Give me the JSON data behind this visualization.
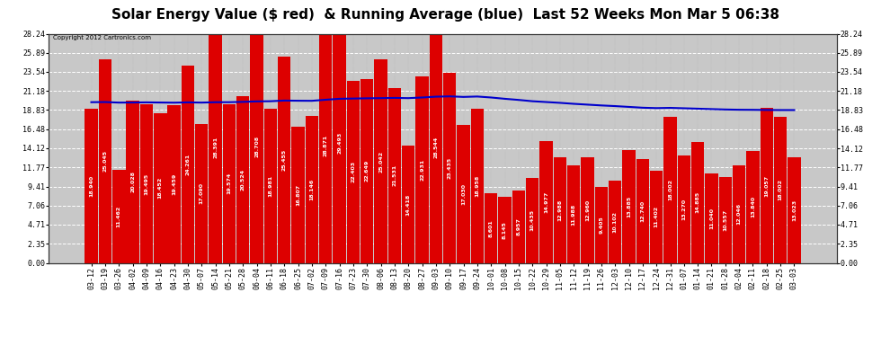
{
  "title": "Solar Energy Value ($ red)  & Running Average (blue)  Last 52 Weeks Mon Mar 5 06:38",
  "copyright": "Copyright 2012 Cartronics.com",
  "bar_color": "#dd0000",
  "line_color": "#0000cc",
  "background_color": "#ffffff",
  "plot_bg_color": "#c8c8c8",
  "grid_color": "#ffffff",
  "ylim": [
    0.0,
    28.24
  ],
  "yticks": [
    0.0,
    2.35,
    4.71,
    7.06,
    9.41,
    11.77,
    14.12,
    16.48,
    18.83,
    21.18,
    23.54,
    25.89,
    28.24
  ],
  "categories": [
    "03-12",
    "03-19",
    "03-26",
    "04-02",
    "04-09",
    "04-16",
    "04-23",
    "04-30",
    "05-07",
    "05-14",
    "05-21",
    "05-28",
    "06-04",
    "06-11",
    "06-18",
    "06-25",
    "07-02",
    "07-09",
    "07-16",
    "07-23",
    "07-30",
    "08-06",
    "08-13",
    "08-20",
    "08-27",
    "09-03",
    "09-10",
    "09-17",
    "09-24",
    "10-01",
    "10-08",
    "10-15",
    "10-22",
    "10-29",
    "11-05",
    "11-12",
    "11-19",
    "11-26",
    "12-03",
    "12-10",
    "12-17",
    "12-24",
    "12-31",
    "01-07",
    "01-14",
    "01-21",
    "01-28",
    "02-04",
    "02-11",
    "02-18",
    "02-25",
    "03-03"
  ],
  "values": [
    18.94,
    25.045,
    11.462,
    20.028,
    19.495,
    18.452,
    19.459,
    24.261,
    17.09,
    28.391,
    19.574,
    20.524,
    28.708,
    18.981,
    25.455,
    16.807,
    18.146,
    28.871,
    29.493,
    22.403,
    22.649,
    25.042,
    21.531,
    14.418,
    22.931,
    28.544,
    23.435,
    17.03,
    18.958,
    8.601,
    8.145,
    8.957,
    10.435,
    14.977,
    12.988,
    11.988,
    12.96,
    9.405,
    10.102,
    13.885,
    12.74,
    11.402,
    18.002,
    13.27,
    14.885,
    11.04,
    10.557,
    12.046,
    13.84,
    19.057,
    18.002,
    13.023
  ],
  "running_avg": [
    19.8,
    19.82,
    19.75,
    19.76,
    19.78,
    19.76,
    19.74,
    19.78,
    19.75,
    19.8,
    19.8,
    19.84,
    19.9,
    19.92,
    20.0,
    19.98,
    19.97,
    20.1,
    20.22,
    20.25,
    20.28,
    20.3,
    20.33,
    20.3,
    20.38,
    20.48,
    20.52,
    20.45,
    20.5,
    20.38,
    20.22,
    20.08,
    19.92,
    19.82,
    19.72,
    19.6,
    19.5,
    19.4,
    19.32,
    19.22,
    19.12,
    19.07,
    19.1,
    19.05,
    19.0,
    18.95,
    18.9,
    18.87,
    18.86,
    18.84,
    18.83,
    18.83
  ],
  "title_fontsize": 11,
  "tick_fontsize": 6,
  "label_fontsize": 4.5
}
